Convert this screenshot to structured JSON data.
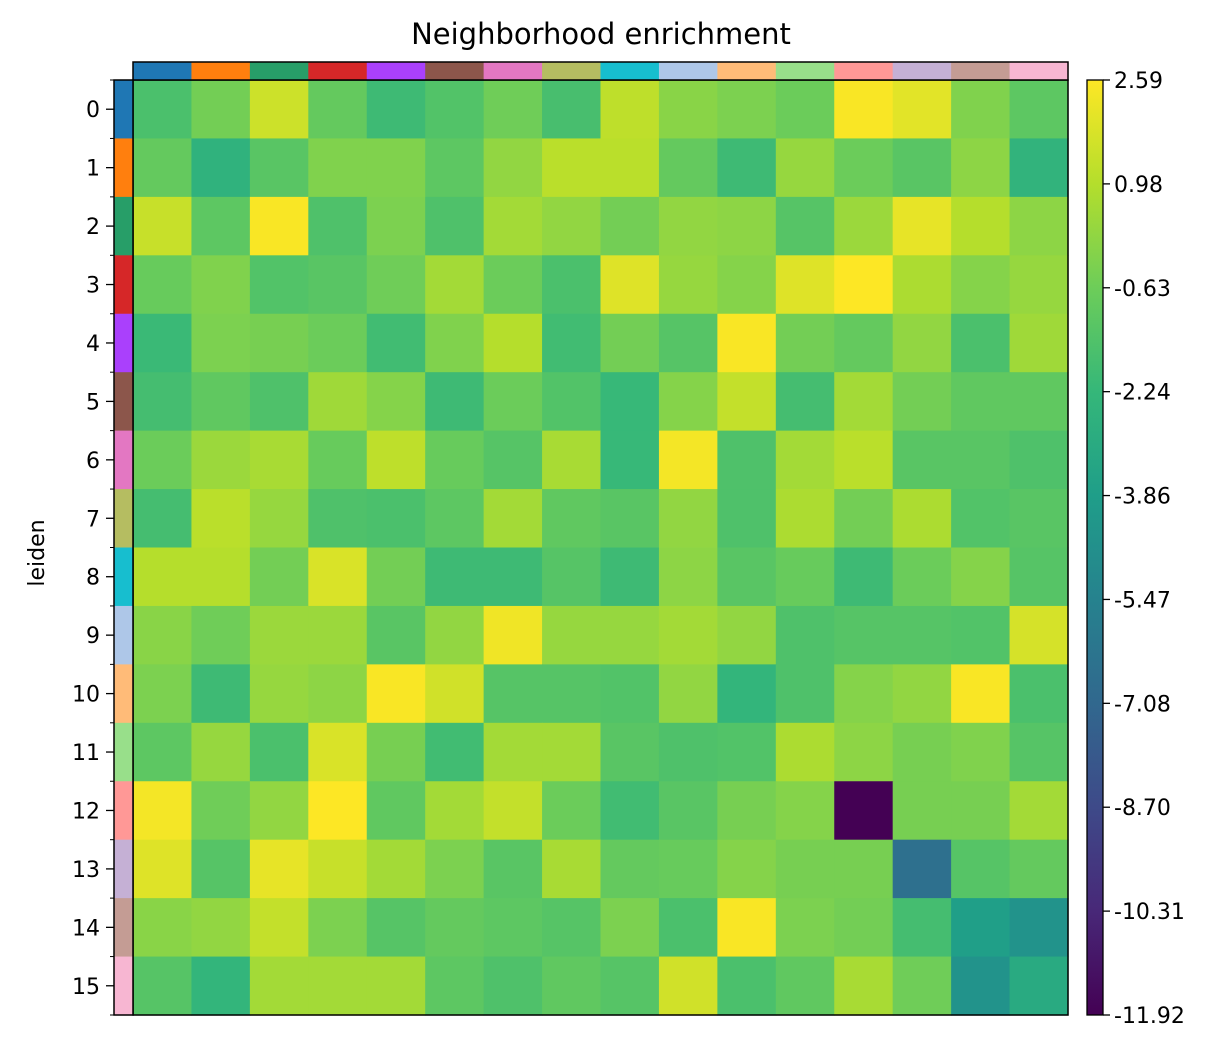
{
  "chart_data": {
    "type": "heatmap",
    "title": "Neighborhood enrichment",
    "ylabel": "leiden",
    "xlabel": "",
    "categories": [
      "0",
      "1",
      "2",
      "3",
      "4",
      "5",
      "6",
      "7",
      "8",
      "9",
      "10",
      "11",
      "12",
      "13",
      "14",
      "15"
    ],
    "category_colors": [
      "#1f77b4",
      "#ff7f0e",
      "#279e68",
      "#d62728",
      "#aa40fc",
      "#8c564b",
      "#e377c2",
      "#b5bd61",
      "#17becf",
      "#aec7e8",
      "#ffbb78",
      "#98df8a",
      "#ff9896",
      "#c5b0d5",
      "#c49c94",
      "#f7b6d2"
    ],
    "colormap": "viridis",
    "vmin": -11.92,
    "vmax": 2.59,
    "colorbar_ticks": [
      "2.59",
      "0.98",
      "-0.63",
      "-2.24",
      "-3.86",
      "-5.47",
      "-7.08",
      "-8.70",
      "-10.31",
      "-11.92"
    ],
    "values": [
      [
        -1.6,
        -0.5,
        1.5,
        -0.9,
        -2.0,
        -1.4,
        -0.6,
        -1.7,
        1.2,
        0.0,
        -0.3,
        -0.7,
        2.5,
        2.0,
        -0.2,
        -1.1
      ],
      [
        -0.9,
        -2.6,
        -1.2,
        -0.2,
        -0.2,
        -1.1,
        0.2,
        1.1,
        1.1,
        -0.9,
        -2.0,
        0.3,
        -0.7,
        -1.2,
        0.1,
        -2.5
      ],
      [
        1.4,
        -1.1,
        2.5,
        -1.5,
        -0.3,
        -1.5,
        0.6,
        0.2,
        -0.5,
        0.2,
        0.1,
        -1.3,
        0.4,
        2.1,
        1.0,
        0.1
      ],
      [
        -0.8,
        -0.2,
        -1.4,
        -1.2,
        -0.6,
        0.6,
        -0.7,
        -1.6,
        1.9,
        0.3,
        -0.1,
        1.9,
        2.6,
        0.8,
        -0.1,
        0.3
      ],
      [
        -2.1,
        -0.3,
        -0.4,
        -0.7,
        -1.9,
        -0.2,
        1.0,
        -1.9,
        -0.5,
        -1.3,
        2.5,
        -0.5,
        -0.9,
        0.2,
        -1.6,
        0.5
      ],
      [
        -1.8,
        -1.0,
        -1.5,
        0.5,
        -0.1,
        -2.0,
        -0.7,
        -1.4,
        -2.2,
        -0.1,
        1.3,
        -1.8,
        0.6,
        -0.5,
        -1.0,
        -1.0
      ],
      [
        -0.7,
        0.4,
        0.7,
        -0.8,
        1.2,
        -0.8,
        -1.3,
        0.7,
        -2.2,
        2.4,
        -1.5,
        0.6,
        1.1,
        -1.2,
        -1.2,
        -1.5
      ],
      [
        -1.8,
        1.1,
        0.3,
        -1.5,
        -1.6,
        -1.1,
        0.6,
        -1.0,
        -1.2,
        0.2,
        -1.5,
        0.8,
        -0.5,
        0.8,
        -1.4,
        -1.2
      ],
      [
        1.0,
        1.0,
        -0.5,
        1.8,
        -0.5,
        -2.0,
        -2.0,
        -1.3,
        -2.0,
        0.1,
        -1.2,
        -0.8,
        -2.0,
        -0.7,
        -0.1,
        -1.3
      ],
      [
        0.0,
        -0.6,
        0.4,
        0.4,
        -1.2,
        0.2,
        2.3,
        0.3,
        0.3,
        0.6,
        0.2,
        -1.5,
        -1.3,
        -1.3,
        -1.4,
        1.7
      ],
      [
        -0.3,
        -2.0,
        0.3,
        0.1,
        2.5,
        1.6,
        -1.3,
        -1.3,
        -1.4,
        0.2,
        -2.4,
        -1.5,
        -0.1,
        0.2,
        2.5,
        -1.6
      ],
      [
        -1.1,
        0.3,
        -1.6,
        1.8,
        -0.4,
        -1.9,
        0.6,
        0.6,
        -1.2,
        -1.5,
        -1.4,
        0.8,
        0.1,
        -0.4,
        -0.2,
        -1.3
      ],
      [
        2.4,
        -0.6,
        0.2,
        2.6,
        -1.0,
        0.6,
        1.3,
        -0.7,
        -1.9,
        -1.2,
        -0.4,
        -0.1,
        -11.92,
        -0.4,
        -0.4,
        0.6
      ],
      [
        1.9,
        -1.3,
        2.1,
        1.4,
        0.6,
        -0.3,
        -1.2,
        0.7,
        -0.9,
        -0.8,
        -0.1,
        -0.4,
        -0.4,
        -6.6,
        -1.3,
        -0.9
      ],
      [
        0.0,
        0.2,
        1.3,
        -0.3,
        -1.3,
        -0.9,
        -1.1,
        -1.3,
        -0.3,
        -1.6,
        2.5,
        -0.3,
        -0.5,
        -1.8,
        -3.8,
        -4.5
      ],
      [
        -1.3,
        -2.4,
        0.6,
        0.6,
        0.6,
        -1.1,
        -1.5,
        -1.0,
        -1.3,
        1.6,
        -1.6,
        -1.0,
        0.7,
        -0.6,
        -4.5,
        -3.1
      ]
    ]
  }
}
